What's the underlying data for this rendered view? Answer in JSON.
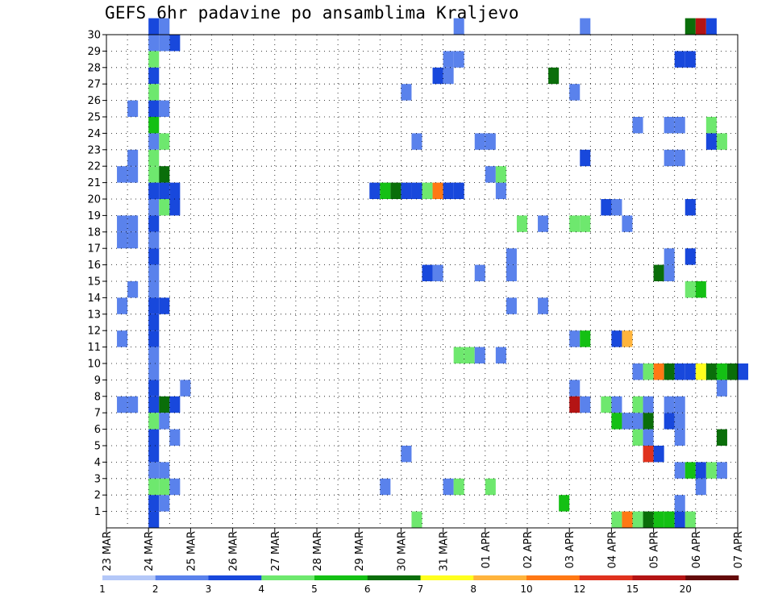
{
  "chart_data": {
    "type": "heatmap",
    "title": "GEFS 6hr padavine po ansamblima Kraljevo",
    "xlabel": "",
    "ylabel": "",
    "x_ticks": [
      "23 MAR",
      "24 MAR",
      "25 MAR",
      "26 MAR",
      "27 MAR",
      "28 MAR",
      "29 MAR",
      "30 MAR",
      "31 MAR",
      "01 APR",
      "02 APR",
      "03 APR",
      "04 APR",
      "05 APR",
      "06 APR",
      "07 APR"
    ],
    "y_ticks": [
      1,
      2,
      3,
      4,
      5,
      6,
      7,
      8,
      9,
      10,
      11,
      12,
      13,
      14,
      15,
      16,
      17,
      18,
      19,
      20,
      21,
      22,
      23,
      24,
      25,
      26,
      27,
      28,
      29,
      30
    ],
    "xlim": [
      "23 MAR 00Z",
      "07 APR 00Z"
    ],
    "ylim": [
      0,
      30
    ],
    "time_step_hours": 6,
    "grid": true,
    "legend": {
      "position": "bottom",
      "thresholds": [
        "1",
        "2",
        "3",
        "4",
        "5",
        "6",
        "7",
        "8",
        "10",
        "12",
        "15",
        "20"
      ],
      "colors": [
        "#b4c8f8",
        "#5a82ec",
        "#1848dc",
        "#6ee86e",
        "#14c014",
        "#0a6e0a",
        "#ffff1e",
        "#ffb43c",
        "#ff7814",
        "#e0321e",
        "#b41414",
        "#640a0a"
      ]
    },
    "cells": [
      [
        "23 MAR 12Z",
        25,
        1
      ],
      [
        "23 MAR 12Z",
        22,
        1
      ],
      [
        "23 MAR 06Z",
        21,
        1
      ],
      [
        "23 MAR 12Z",
        21,
        1
      ],
      [
        "23 MAR 06Z",
        18,
        1
      ],
      [
        "23 MAR 12Z",
        18,
        1
      ],
      [
        "23 MAR 06Z",
        17,
        1
      ],
      [
        "23 MAR 12Z",
        17,
        1
      ],
      [
        "23 MAR 12Z",
        14,
        1
      ],
      [
        "23 MAR 06Z",
        13,
        1
      ],
      [
        "23 MAR 06Z",
        11,
        1
      ],
      [
        "23 MAR 06Z",
        7,
        1
      ],
      [
        "23 MAR 12Z",
        7,
        1
      ],
      [
        "24 MAR 00Z",
        30,
        2
      ],
      [
        "24 MAR 06Z",
        30,
        1
      ],
      [
        "24 MAR 00Z",
        29,
        1
      ],
      [
        "24 MAR 06Z",
        29,
        1
      ],
      [
        "24 MAR 12Z",
        29,
        2
      ],
      [
        "24 MAR 00Z",
        28,
        3
      ],
      [
        "24 MAR 00Z",
        27,
        2
      ],
      [
        "24 MAR 00Z",
        26,
        3
      ],
      [
        "24 MAR 00Z",
        25,
        2
      ],
      [
        "24 MAR 06Z",
        25,
        1
      ],
      [
        "24 MAR 00Z",
        24,
        4
      ],
      [
        "24 MAR 00Z",
        23,
        1
      ],
      [
        "24 MAR 06Z",
        23,
        3
      ],
      [
        "24 MAR 00Z",
        22,
        3
      ],
      [
        "24 MAR 00Z",
        21,
        3
      ],
      [
        "24 MAR 06Z",
        21,
        5
      ],
      [
        "24 MAR 00Z",
        20,
        2
      ],
      [
        "24 MAR 06Z",
        20,
        2
      ],
      [
        "24 MAR 12Z",
        20,
        2
      ],
      [
        "24 MAR 00Z",
        19,
        1
      ],
      [
        "24 MAR 06Z",
        19,
        3
      ],
      [
        "24 MAR 12Z",
        19,
        2
      ],
      [
        "24 MAR 00Z",
        18,
        2
      ],
      [
        "24 MAR 00Z",
        17,
        1
      ],
      [
        "24 MAR 00Z",
        16,
        2
      ],
      [
        "24 MAR 00Z",
        15,
        1
      ],
      [
        "24 MAR 00Z",
        14,
        1
      ],
      [
        "24 MAR 00Z",
        13,
        2
      ],
      [
        "24 MAR 06Z",
        13,
        2
      ],
      [
        "24 MAR 00Z",
        12,
        2
      ],
      [
        "24 MAR 00Z",
        11,
        2
      ],
      [
        "24 MAR 00Z",
        10,
        1
      ],
      [
        "24 MAR 00Z",
        9,
        1
      ],
      [
        "24 MAR 00Z",
        8,
        2
      ],
      [
        "24 MAR 18Z",
        8,
        1
      ],
      [
        "24 MAR 00Z",
        7,
        2
      ],
      [
        "24 MAR 06Z",
        7,
        5
      ],
      [
        "24 MAR 12Z",
        7,
        2
      ],
      [
        "24 MAR 00Z",
        6,
        3
      ],
      [
        "24 MAR 06Z",
        6,
        1
      ],
      [
        "24 MAR 00Z",
        5,
        2
      ],
      [
        "24 MAR 12Z",
        5,
        1
      ],
      [
        "24 MAR 00Z",
        4,
        2
      ],
      [
        "24 MAR 00Z",
        3,
        1
      ],
      [
        "24 MAR 06Z",
        3,
        1
      ],
      [
        "24 MAR 00Z",
        2,
        3
      ],
      [
        "24 MAR 06Z",
        2,
        3
      ],
      [
        "24 MAR 12Z",
        2,
        1
      ],
      [
        "24 MAR 00Z",
        1,
        2
      ],
      [
        "24 MAR 06Z",
        1,
        1
      ],
      [
        "24 MAR 00Z",
        0,
        2
      ],
      [
        "29 MAR 06Z",
        20,
        2
      ],
      [
        "29 MAR 12Z",
        20,
        4
      ],
      [
        "29 MAR 18Z",
        20,
        5
      ],
      [
        "30 MAR 00Z",
        20,
        2
      ],
      [
        "30 MAR 06Z",
        20,
        2
      ],
      [
        "30 MAR 12Z",
        20,
        3
      ],
      [
        "30 MAR 18Z",
        20,
        8
      ],
      [
        "31 MAR 00Z",
        20,
        2
      ],
      [
        "31 MAR 06Z",
        20,
        2
      ],
      [
        "01 APR 06Z",
        20,
        1
      ],
      [
        "29 MAR 12Z",
        2,
        1
      ],
      [
        "30 MAR 06Z",
        0,
        3
      ],
      [
        "30 MAR 00Z",
        26,
        1
      ],
      [
        "30 MAR 06Z",
        23,
        1
      ],
      [
        "30 MAR 18Z",
        27,
        2
      ],
      [
        "31 MAR 00Z",
        27,
        1
      ],
      [
        "31 MAR 00Z",
        28,
        1
      ],
      [
        "31 MAR 06Z",
        28,
        1
      ],
      [
        "31 MAR 06Z",
        30,
        1
      ],
      [
        "31 MAR 18Z",
        23,
        1
      ],
      [
        "01 APR 00Z",
        23,
        1
      ],
      [
        "01 APR 00Z",
        21,
        1
      ],
      [
        "01 APR 06Z",
        21,
        3
      ],
      [
        "30 MAR 12Z",
        15,
        2
      ],
      [
        "30 MAR 18Z",
        15,
        1
      ],
      [
        "31 MAR 18Z",
        15,
        1
      ],
      [
        "01 APR 12Z",
        15,
        1
      ],
      [
        "01 APR 18Z",
        18,
        3
      ],
      [
        "01 APR 12Z",
        16,
        1
      ],
      [
        "01 APR 12Z",
        13,
        1
      ],
      [
        "02 APR 06Z",
        13,
        1
      ],
      [
        "31 MAR 06Z",
        10,
        3
      ],
      [
        "31 MAR 12Z",
        10,
        3
      ],
      [
        "31 MAR 18Z",
        10,
        1
      ],
      [
        "01 APR 06Z",
        10,
        1
      ],
      [
        "30 MAR 00Z",
        4,
        1
      ],
      [
        "31 MAR 00Z",
        2,
        1
      ],
      [
        "31 MAR 06Z",
        2,
        3
      ],
      [
        "01 APR 00Z",
        2,
        3
      ],
      [
        "02 APR 12Z",
        27,
        5
      ],
      [
        "02 APR 06Z",
        18,
        1
      ],
      [
        "03 APR 00Z",
        18,
        3
      ],
      [
        "03 APR 06Z",
        18,
        3
      ],
      [
        "03 APR 06Z",
        30,
        1
      ],
      [
        "03 APR 00Z",
        26,
        1
      ],
      [
        "03 APR 06Z",
        22,
        2
      ],
      [
        "03 APR 18Z",
        19,
        2
      ],
      [
        "04 APR 00Z",
        19,
        1
      ],
      [
        "04 APR 06Z",
        18,
        1
      ],
      [
        "03 APR 00Z",
        11,
        1
      ],
      [
        "03 APR 06Z",
        11,
        4
      ],
      [
        "04 APR 00Z",
        11,
        2
      ],
      [
        "04 APR 06Z",
        11,
        7
      ],
      [
        "03 APR 00Z",
        8,
        1
      ],
      [
        "03 APR 00Z",
        7,
        10
      ],
      [
        "03 APR 06Z",
        7,
        1
      ],
      [
        "03 APR 18Z",
        7,
        3
      ],
      [
        "04 APR 00Z",
        7,
        1
      ],
      [
        "02 APR 18Z",
        1,
        4
      ],
      [
        "04 APR 00Z",
        6,
        4
      ],
      [
        "04 APR 06Z",
        6,
        1
      ],
      [
        "04 APR 12Z",
        6,
        1
      ],
      [
        "04 APR 18Z",
        6,
        5
      ],
      [
        "04 APR 12Z",
        7,
        3
      ],
      [
        "04 APR 18Z",
        7,
        1
      ],
      [
        "04 APR 12Z",
        24,
        1
      ],
      [
        "04 APR 12Z",
        9,
        1
      ],
      [
        "04 APR 18Z",
        9,
        3
      ],
      [
        "05 APR 00Z",
        9,
        8
      ],
      [
        "05 APR 06Z",
        9,
        5
      ],
      [
        "05 APR 12Z",
        9,
        2
      ],
      [
        "05 APR 18Z",
        9,
        2
      ],
      [
        "06 APR 00Z",
        9,
        6
      ],
      [
        "06 APR 06Z",
        9,
        5
      ],
      [
        "06 APR 12Z",
        9,
        4
      ],
      [
        "06 APR 18Z",
        9,
        5
      ],
      [
        "07 APR 00Z",
        9,
        2
      ],
      [
        "05 APR 00Z",
        15,
        5
      ],
      [
        "05 APR 06Z",
        15,
        1
      ],
      [
        "05 APR 06Z",
        16,
        1
      ],
      [
        "04 APR 12Z",
        5,
        3
      ],
      [
        "04 APR 18Z",
        5,
        1
      ],
      [
        "04 APR 18Z",
        4,
        9
      ],
      [
        "05 APR 00Z",
        4,
        2
      ],
      [
        "05 APR 06Z",
        6,
        2
      ],
      [
        "05 APR 06Z",
        7,
        1
      ],
      [
        "05 APR 12Z",
        7,
        1
      ],
      [
        "05 APR 12Z",
        6,
        1
      ],
      [
        "05 APR 12Z",
        5,
        1
      ],
      [
        "05 APR 06Z",
        24,
        1
      ],
      [
        "05 APR 12Z",
        24,
        1
      ],
      [
        "05 APR 06Z",
        22,
        1
      ],
      [
        "05 APR 12Z",
        22,
        1
      ],
      [
        "05 APR 12Z",
        28,
        2
      ],
      [
        "05 APR 18Z",
        28,
        2
      ],
      [
        "05 APR 18Z",
        19,
        2
      ],
      [
        "05 APR 18Z",
        16,
        2
      ],
      [
        "05 APR 18Z",
        14,
        3
      ],
      [
        "06 APR 00Z",
        14,
        4
      ],
      [
        "06 APR 06Z",
        24,
        3
      ],
      [
        "06 APR 06Z",
        23,
        2
      ],
      [
        "06 APR 12Z",
        23,
        3
      ],
      [
        "05 APR 12Z",
        3,
        1
      ],
      [
        "05 APR 18Z",
        3,
        4
      ],
      [
        "06 APR 00Z",
        3,
        2
      ],
      [
        "06 APR 06Z",
        3,
        3
      ],
      [
        "06 APR 12Z",
        3,
        1
      ],
      [
        "05 APR 12Z",
        1,
        1
      ],
      [
        "06 APR 00Z",
        2,
        1
      ],
      [
        "06 APR 12Z",
        8,
        1
      ],
      [
        "06 APR 12Z",
        5,
        5
      ],
      [
        "05 APR 18Z",
        30,
        5
      ],
      [
        "06 APR 00Z",
        30,
        10
      ],
      [
        "06 APR 06Z",
        30,
        2
      ],
      [
        "04 APR 00Z",
        0,
        3
      ],
      [
        "04 APR 06Z",
        0,
        8
      ],
      [
        "04 APR 12Z",
        0,
        3
      ],
      [
        "04 APR 18Z",
        0,
        5
      ],
      [
        "05 APR 00Z",
        0,
        4
      ],
      [
        "05 APR 06Z",
        0,
        4
      ],
      [
        "05 APR 12Z",
        0,
        2
      ],
      [
        "05 APR 18Z",
        0,
        3
      ]
    ]
  }
}
